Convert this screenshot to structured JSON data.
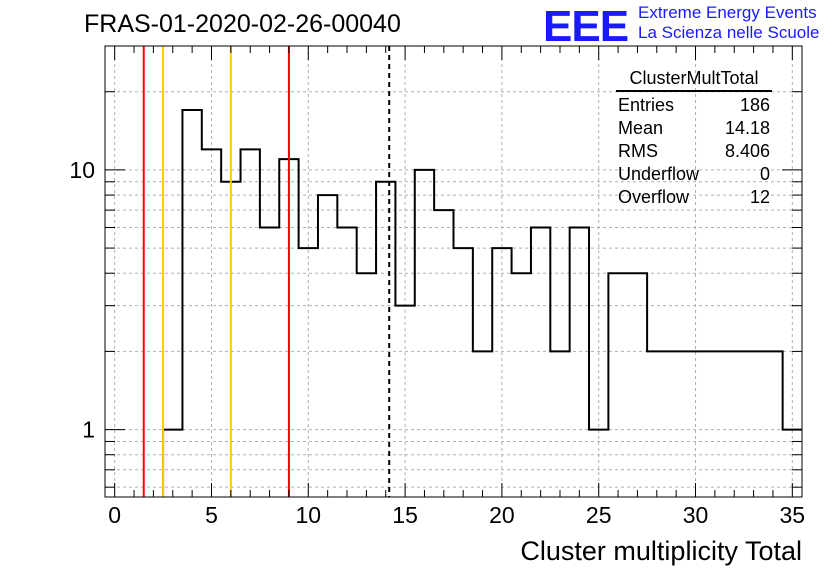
{
  "title": "FRAS-01-2020-02-26-00040",
  "logo": {
    "mark": "EEE",
    "line1": "Extreme Energy Events",
    "line2": "La Scienza nelle Scuole",
    "color": "#1a1aff"
  },
  "stats": {
    "name": "ClusterMultTotal",
    "rows": [
      {
        "label": "Entries",
        "value": "186"
      },
      {
        "label": "Mean",
        "value": "14.18"
      },
      {
        "label": "RMS",
        "value": "8.406"
      },
      {
        "label": "Underflow",
        "value": "0"
      },
      {
        "label": "Overflow",
        "value": "12"
      }
    ]
  },
  "chart_data": {
    "type": "histogram",
    "xlabel": "Cluster multiplicity Total",
    "ylabel": "",
    "xlim": [
      -0.5,
      35.5
    ],
    "ylim": [
      0.55,
      30
    ],
    "yscale": "log",
    "grid": true,
    "x_ticks": [
      0,
      5,
      10,
      15,
      20,
      25,
      30,
      35
    ],
    "y_ticks": [
      1,
      10
    ],
    "bins": [
      {
        "x0": 2.5,
        "x1": 3.5,
        "y": 1
      },
      {
        "x0": 3.5,
        "x1": 4.5,
        "y": 17
      },
      {
        "x0": 4.5,
        "x1": 5.5,
        "y": 12
      },
      {
        "x0": 5.5,
        "x1": 6.5,
        "y": 9
      },
      {
        "x0": 6.5,
        "x1": 7.5,
        "y": 12
      },
      {
        "x0": 7.5,
        "x1": 8.5,
        "y": 6
      },
      {
        "x0": 8.5,
        "x1": 9.5,
        "y": 11
      },
      {
        "x0": 9.5,
        "x1": 10.5,
        "y": 5
      },
      {
        "x0": 10.5,
        "x1": 11.5,
        "y": 8
      },
      {
        "x0": 11.5,
        "x1": 12.5,
        "y": 6
      },
      {
        "x0": 12.5,
        "x1": 13.5,
        "y": 4
      },
      {
        "x0": 13.5,
        "x1": 14.5,
        "y": 9
      },
      {
        "x0": 14.5,
        "x1": 15.5,
        "y": 3
      },
      {
        "x0": 15.5,
        "x1": 16.5,
        "y": 10
      },
      {
        "x0": 16.5,
        "x1": 17.5,
        "y": 7
      },
      {
        "x0": 17.5,
        "x1": 18.5,
        "y": 5
      },
      {
        "x0": 18.5,
        "x1": 19.5,
        "y": 2
      },
      {
        "x0": 19.5,
        "x1": 20.5,
        "y": 5
      },
      {
        "x0": 20.5,
        "x1": 21.5,
        "y": 4
      },
      {
        "x0": 21.5,
        "x1": 22.5,
        "y": 6
      },
      {
        "x0": 22.5,
        "x1": 23.5,
        "y": 2
      },
      {
        "x0": 23.5,
        "x1": 24.5,
        "y": 6
      },
      {
        "x0": 24.5,
        "x1": 25.5,
        "y": 1
      },
      {
        "x0": 25.5,
        "x1": 27.5,
        "y": 4
      },
      {
        "x0": 27.5,
        "x1": 34.5,
        "y": 2
      },
      {
        "x0": 34.5,
        "x1": 35.5,
        "y": 1
      }
    ],
    "vlines": [
      {
        "x": 1.5,
        "color": "#ff0000",
        "style": "solid"
      },
      {
        "x": 2.5,
        "color": "#ffcc00",
        "style": "solid"
      },
      {
        "x": 6.0,
        "color": "#ffcc00",
        "style": "solid"
      },
      {
        "x": 9.0,
        "color": "#ff0000",
        "style": "solid"
      },
      {
        "x": 14.18,
        "color": "#000000",
        "style": "dashed"
      }
    ]
  }
}
